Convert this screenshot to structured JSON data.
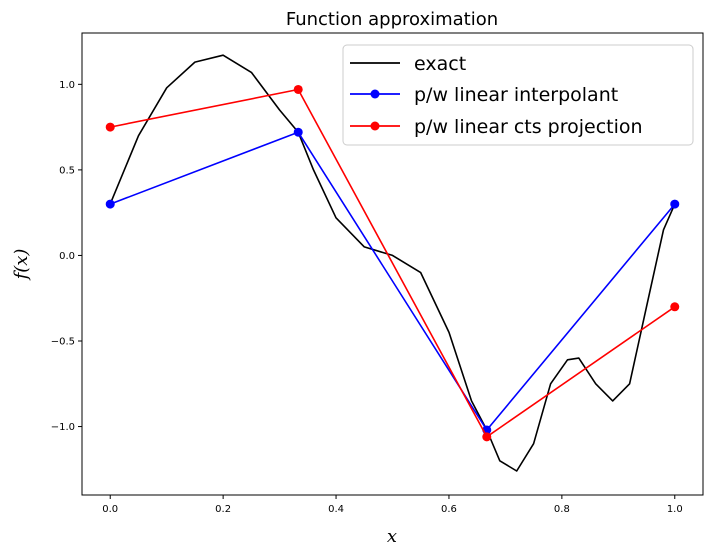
{
  "chart_data": {
    "type": "line",
    "title": "Function approximation",
    "xlabel": "x",
    "ylabel": "f(x)",
    "xlim": [
      -0.05,
      1.05
    ],
    "ylim": [
      -1.4,
      1.3
    ],
    "xticks": [
      0.0,
      0.2,
      0.4,
      0.6,
      0.8,
      1.0
    ],
    "xtick_labels": [
      "0.0",
      "0.2",
      "0.4",
      "0.6",
      "0.8",
      "1.0"
    ],
    "yticks": [
      1.0,
      0.5,
      0.0,
      -0.5,
      -1.0
    ],
    "ytick_labels": [
      "1.0",
      "0.5",
      "0.0",
      "−0.5",
      "−1.0"
    ],
    "grid": false,
    "legend_position": "top-right",
    "series": [
      {
        "name": "exact",
        "color": "#000000",
        "marker": "none",
        "x": [
          0.0,
          0.05,
          0.1,
          0.15,
          0.2,
          0.25,
          0.3,
          0.333,
          0.36,
          0.4,
          0.45,
          0.5,
          0.55,
          0.6,
          0.64,
          0.667,
          0.69,
          0.72,
          0.75,
          0.78,
          0.81,
          0.83,
          0.86,
          0.89,
          0.92,
          0.95,
          0.98,
          1.0
        ],
        "y": [
          0.3,
          0.7,
          0.98,
          1.13,
          1.17,
          1.07,
          0.85,
          0.72,
          0.5,
          0.22,
          0.05,
          0.0,
          -0.1,
          -0.45,
          -0.85,
          -1.02,
          -1.2,
          -1.26,
          -1.1,
          -0.75,
          -0.61,
          -0.6,
          -0.75,
          -0.85,
          -0.75,
          -0.3,
          0.15,
          0.3
        ]
      },
      {
        "name": "p/w linear interpolant",
        "color": "#0000ff",
        "marker": "circle",
        "x": [
          0.0,
          0.333,
          0.667,
          1.0
        ],
        "y": [
          0.3,
          0.72,
          -1.02,
          0.3
        ]
      },
      {
        "name": "p/w linear cts projection",
        "color": "#ff0000",
        "marker": "circle",
        "x": [
          0.0,
          0.333,
          0.667,
          1.0
        ],
        "y": [
          0.75,
          0.97,
          -1.06,
          -0.3
        ]
      }
    ]
  }
}
